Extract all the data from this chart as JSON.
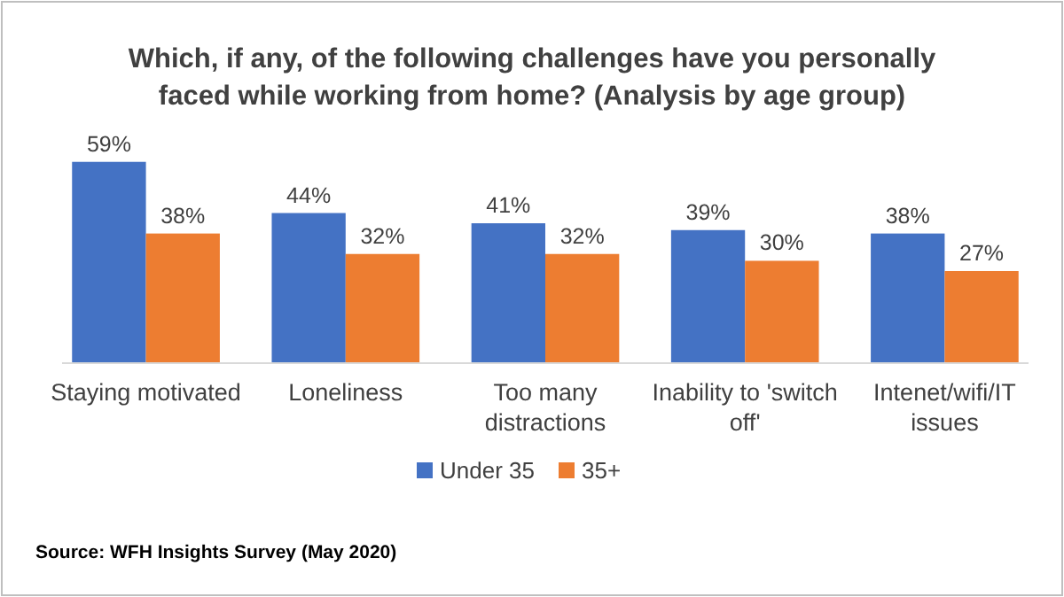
{
  "chart_data": {
    "type": "bar",
    "title": "Which, if any, of the following challenges have you personally faced while working from home? (Analysis by age group)",
    "categories": [
      "Staying motivated",
      "Loneliness",
      "Too many distractions",
      "Inability to 'switch off'",
      "Intenet/wifi/IT issues"
    ],
    "series": [
      {
        "name": "Under 35",
        "color": "#4472c4",
        "values": [
          59,
          44,
          41,
          39,
          38
        ],
        "value_labels": [
          "59%",
          "44%",
          "41%",
          "39%",
          "38%"
        ]
      },
      {
        "name": "35+",
        "color": "#ed7d31",
        "values": [
          38,
          32,
          32,
          30,
          27
        ],
        "value_labels": [
          "38%",
          "32%",
          "32%",
          "30%",
          "27%"
        ]
      }
    ],
    "legend": "bottom",
    "grid": false,
    "annotations": [
      "Source: WFH Insights Survey (May 2020)"
    ]
  }
}
